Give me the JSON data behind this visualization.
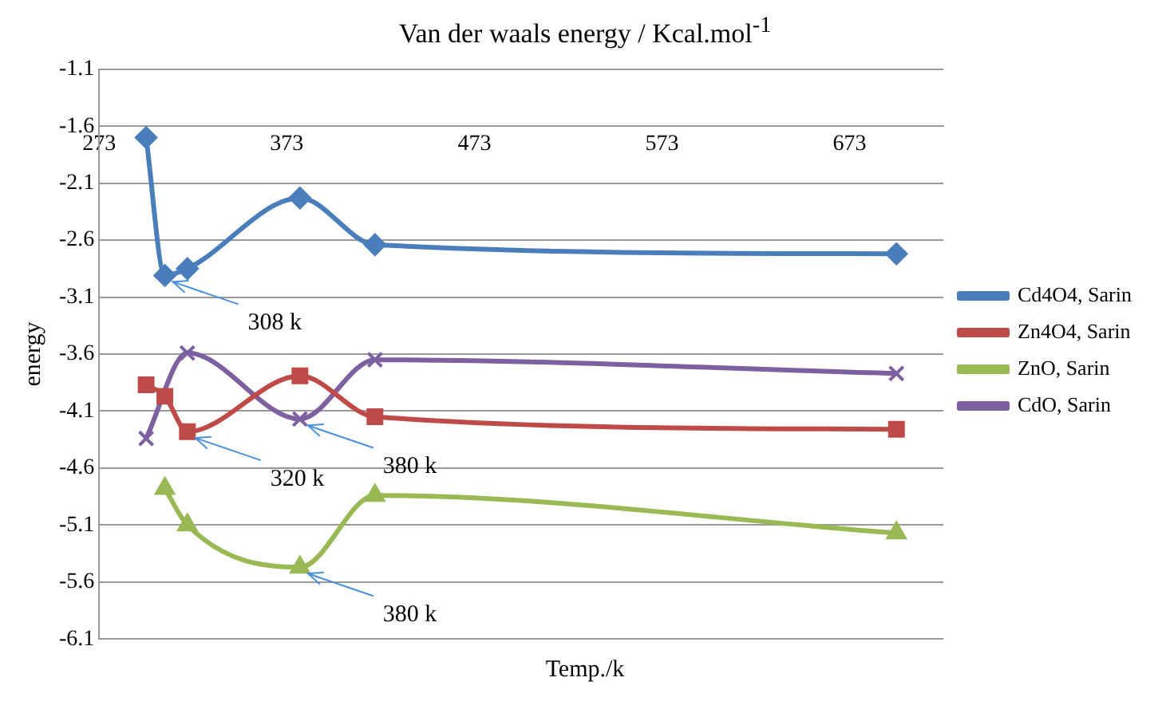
{
  "chart_data": {
    "type": "line",
    "title": "Van der waals energy / Kcal.mol$^{-1}$",
    "xlabel": "Temp./k",
    "ylabel": "energy",
    "xlim": [
      273,
      723
    ],
    "xticks": [
      273,
      373,
      473,
      573,
      673
    ],
    "ylim": [
      -6.1,
      -1.1
    ],
    "yticks": [
      -6.1,
      -5.6,
      -5.1,
      -4.6,
      -4.1,
      -3.6,
      -3.1,
      -2.6,
      -2.1,
      -1.6,
      -1.1
    ],
    "grid": "y",
    "legend": "right",
    "series": [
      {
        "name": "Cd4O4, Sarin",
        "color": "#4a7ebb",
        "marker": "diamond",
        "x": [
          298,
          308,
          320,
          380,
          420,
          698
        ],
        "values": [
          -1.7,
          -2.91,
          -2.85,
          -2.23,
          -2.64,
          -2.72
        ]
      },
      {
        "name": "Zn4O4, Sarin",
        "color": "#be4b48",
        "marker": "square",
        "x": [
          298,
          308,
          320,
          380,
          420,
          698
        ],
        "values": [
          -3.87,
          -3.97,
          -4.28,
          -3.79,
          -4.15,
          -4.26
        ]
      },
      {
        "name": "ZnO, Sarin",
        "color": "#98b954",
        "marker": "triangle",
        "x": [
          308,
          320,
          380,
          420,
          698
        ],
        "values": [
          -4.78,
          -5.1,
          -5.47,
          -4.84,
          -5.17
        ]
      },
      {
        "name": "CdO, Sarin",
        "color": "#7d60a0",
        "marker": "cross",
        "x": [
          298,
          320,
          380,
          420,
          698
        ],
        "values": [
          -4.34,
          -3.59,
          -4.17,
          -3.65,
          -3.77
        ]
      }
    ],
    "annotations": [
      {
        "text": "308 k",
        "x": 308,
        "y": -2.91
      },
      {
        "text": "320 k",
        "x": 320,
        "y": -4.28
      },
      {
        "text": "380 k",
        "x": 380,
        "y": -4.17
      },
      {
        "text": "380 k",
        "x": 380,
        "y": -5.47
      }
    ]
  }
}
